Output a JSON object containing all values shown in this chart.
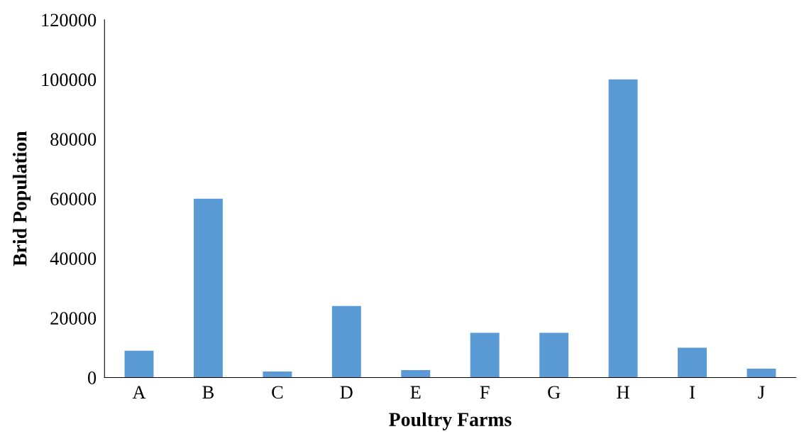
{
  "chart_data": {
    "type": "bar",
    "xlabel": "Poultry Farms",
    "ylabel": "Brid Population",
    "categories": [
      "A",
      "B",
      "C",
      "D",
      "E",
      "F",
      "G",
      "H",
      "I",
      "J"
    ],
    "values": [
      9000,
      60000,
      2000,
      24000,
      2500,
      15000,
      15000,
      100000,
      10000,
      3000
    ],
    "color": "#5b9bd5",
    "ylim": [
      0,
      120000
    ],
    "yticks": [
      0,
      20000,
      40000,
      60000,
      80000,
      100000,
      120000
    ]
  }
}
